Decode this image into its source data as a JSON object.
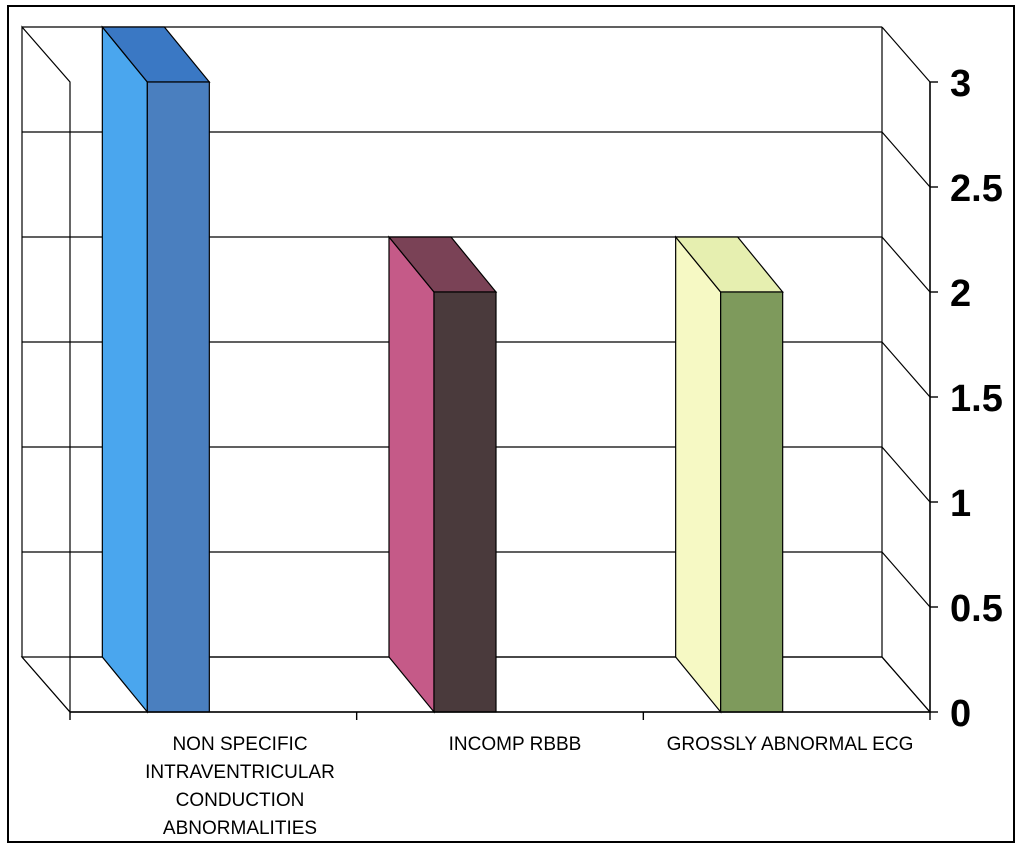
{
  "chart_data": {
    "type": "bar",
    "categories": [
      "NON SPECIFIC INTRAVENTRICULAR CONDUCTION ABNORMALITIES",
      "INCOMP RBBB",
      "GROSSLY ABNORMAL ECG"
    ],
    "category_lines": [
      [
        "NON SPECIFIC",
        "INTRAVENTRICULAR",
        "CONDUCTION",
        "ABNORMALITIES"
      ],
      [
        "INCOMP RBBB"
      ],
      [
        "GROSSLY ABNORMAL ECG"
      ]
    ],
    "values": [
      3,
      2,
      2
    ],
    "ylim": [
      0,
      3
    ],
    "yticks": [
      "0",
      "0.5",
      "1",
      "1.5",
      "2",
      "2.5",
      "3"
    ],
    "grid": true,
    "three_d": true,
    "colors": [
      {
        "front": "#4a7fbf",
        "side": "#4aa6ee",
        "top": "#3a78c4"
      },
      {
        "front": "#4a3a3c",
        "side": "#c55a88",
        "top": "#7a4256"
      },
      {
        "front": "#7e9a5c",
        "side": "#f6f9c4",
        "top": "#e6efb0"
      }
    ]
  }
}
